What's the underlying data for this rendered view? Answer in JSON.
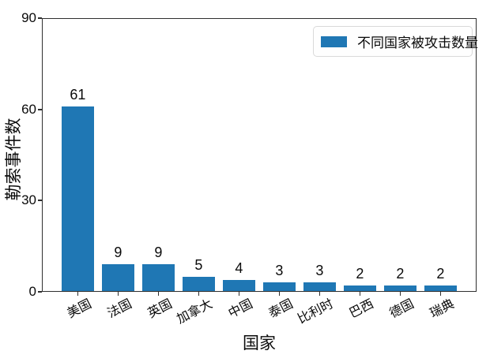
{
  "figure": {
    "background": "#ffffff",
    "frame_color": "#2f2f2f",
    "text_color": "#0a0a0a"
  },
  "chart_data": {
    "type": "bar",
    "title": "",
    "categories": [
      "美国",
      "法国",
      "英国",
      "加拿大",
      "中国",
      "泰国",
      "比利时",
      "巴西",
      "德国",
      "瑞典"
    ],
    "values": [
      61,
      9,
      9,
      5,
      4,
      3,
      3,
      2,
      2,
      2
    ],
    "value_labels": [
      "61",
      "9",
      "9",
      "5",
      "4",
      "3",
      "3",
      "2",
      "2",
      "2"
    ],
    "xlabel": "国家",
    "ylabel": "勒索事件数",
    "ylim": [
      0,
      90
    ],
    "yticks": [
      0,
      30,
      60,
      90
    ],
    "grid": false,
    "bar_color": "#1f77b4",
    "legend": {
      "label": "不同国家被攻击数量",
      "position": "upper right",
      "swatch_color": "#1f77b4"
    }
  }
}
